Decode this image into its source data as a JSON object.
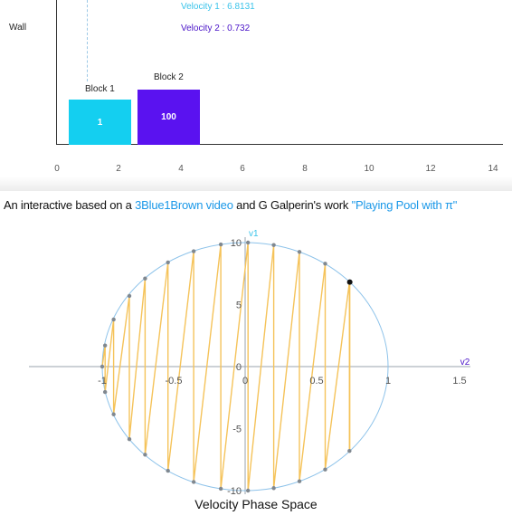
{
  "simulation": {
    "wall_label": "Wall",
    "velocity1": "Velocity 1 : 6.8131",
    "velocity2": "Velocity 2 : 0.732",
    "block1": {
      "label": "Block 1",
      "mass": "1",
      "color": "#14cff0"
    },
    "block2": {
      "label": "Block 2",
      "mass": "100",
      "color": "#5a12f0"
    },
    "axis_ticks": [
      "0",
      "2",
      "4",
      "6",
      "8",
      "10",
      "12",
      "14"
    ]
  },
  "caption": {
    "prefix": "An interactive based on a ",
    "link1": "3Blue1Brown video",
    "middle": " and G Galperin's work ",
    "link2": "\"Playing Pool with π\""
  },
  "chart_data": {
    "type": "scatter",
    "title": "Velocity Phase Space",
    "xlabel": "v2",
    "ylabel": "v1",
    "xlim": [
      -1.6,
      1.85
    ],
    "ylim": [
      -10.6,
      10.6
    ],
    "x_ticks": [
      "-1",
      "-0.5",
      "0",
      "0.5",
      "1",
      "1.5"
    ],
    "y_ticks": [
      "10",
      "5",
      "0",
      "-5",
      "-10"
    ],
    "ellipse": {
      "rx": 1,
      "ry": 10,
      "color": "#8ec3ea"
    },
    "path_color": "#f5c35a",
    "point_color": "#808890",
    "current_point": {
      "x": 0.732,
      "y": 6.8131
    },
    "points": [
      {
        "x": -1.0,
        "y": 0.0
      },
      {
        "x": -0.98,
        "y": 1.7
      },
      {
        "x": -0.98,
        "y": -2.05
      },
      {
        "x": -0.92,
        "y": 3.8
      },
      {
        "x": -0.92,
        "y": -3.85
      },
      {
        "x": -0.81,
        "y": 5.7
      },
      {
        "x": -0.81,
        "y": -5.85
      },
      {
        "x": -0.7,
        "y": 7.1
      },
      {
        "x": -0.7,
        "y": -7.1
      },
      {
        "x": -0.54,
        "y": 8.4
      },
      {
        "x": -0.54,
        "y": -8.4
      },
      {
        "x": -0.36,
        "y": 9.3
      },
      {
        "x": -0.36,
        "y": -9.3
      },
      {
        "x": -0.17,
        "y": 9.85
      },
      {
        "x": -0.17,
        "y": -9.85
      },
      {
        "x": 0.02,
        "y": 10.0
      },
      {
        "x": 0.02,
        "y": -10.0
      },
      {
        "x": 0.2,
        "y": 9.8
      },
      {
        "x": 0.2,
        "y": -9.8
      },
      {
        "x": 0.38,
        "y": 9.25
      },
      {
        "x": 0.38,
        "y": -9.25
      },
      {
        "x": 0.56,
        "y": 8.3
      },
      {
        "x": 0.56,
        "y": -8.3
      },
      {
        "x": 0.73,
        "y": 6.8
      },
      {
        "x": 0.73,
        "y": -6.8
      }
    ]
  }
}
